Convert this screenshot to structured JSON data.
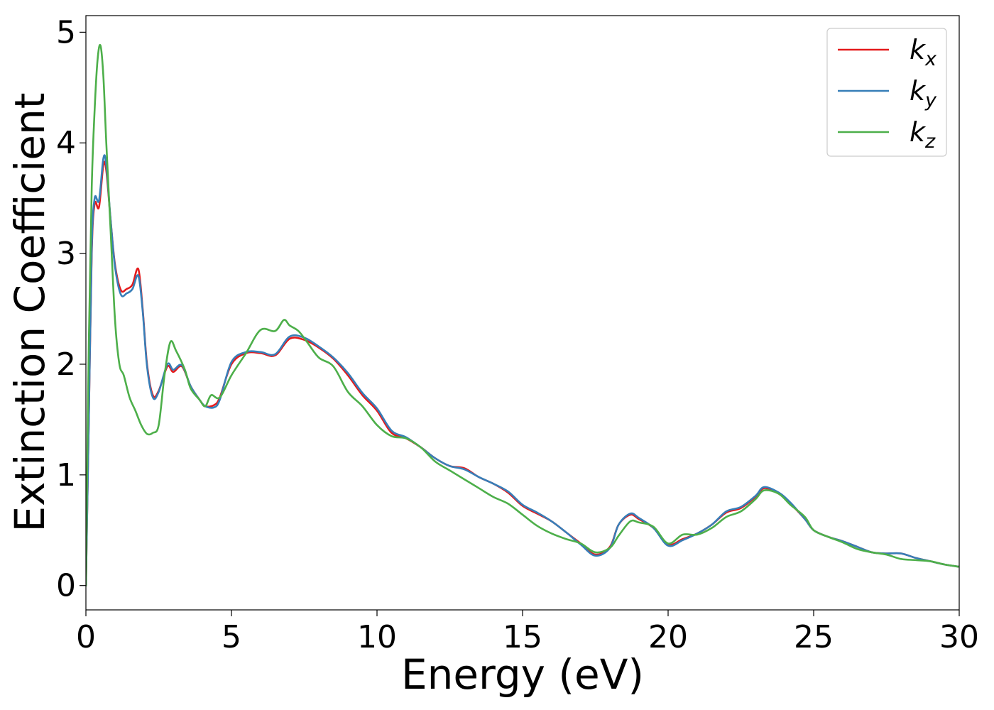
{
  "chart_data": {
    "type": "line",
    "xlabel": "Energy (eV)",
    "ylabel": "Extinction Coefficient",
    "xlim": [
      0,
      30
    ],
    "ylim": [
      -0.22,
      5.15
    ],
    "x_ticks": [
      0,
      5,
      10,
      15,
      20,
      25,
      30
    ],
    "y_ticks": [
      0,
      1,
      2,
      3,
      4,
      5
    ],
    "grid": false,
    "legend_position": "top-right",
    "series": [
      {
        "name": "k_x",
        "label_main": "k",
        "label_sub": "x",
        "color": "#e41a1c",
        "points": [
          [
            0,
            0
          ],
          [
            0.1,
            1.5
          ],
          [
            0.2,
            3.0
          ],
          [
            0.3,
            3.45
          ],
          [
            0.45,
            3.42
          ],
          [
            0.6,
            3.8
          ],
          [
            0.7,
            3.75
          ],
          [
            0.85,
            3.3
          ],
          [
            1.0,
            2.9
          ],
          [
            1.2,
            2.67
          ],
          [
            1.4,
            2.68
          ],
          [
            1.6,
            2.72
          ],
          [
            1.8,
            2.86
          ],
          [
            1.95,
            2.5
          ],
          [
            2.1,
            2.0
          ],
          [
            2.3,
            1.72
          ],
          [
            2.5,
            1.76
          ],
          [
            2.8,
            1.98
          ],
          [
            3.0,
            1.93
          ],
          [
            3.3,
            1.98
          ],
          [
            3.6,
            1.8
          ],
          [
            3.9,
            1.68
          ],
          [
            4.1,
            1.62
          ],
          [
            4.4,
            1.63
          ],
          [
            4.6,
            1.7
          ],
          [
            5.0,
            2.0
          ],
          [
            5.5,
            2.1
          ],
          [
            6.0,
            2.1
          ],
          [
            6.5,
            2.08
          ],
          [
            7.0,
            2.23
          ],
          [
            7.5,
            2.22
          ],
          [
            8.0,
            2.15
          ],
          [
            8.5,
            2.05
          ],
          [
            9.0,
            1.9
          ],
          [
            9.5,
            1.72
          ],
          [
            10.0,
            1.58
          ],
          [
            10.5,
            1.38
          ],
          [
            11.0,
            1.33
          ],
          [
            11.5,
            1.25
          ],
          [
            12.0,
            1.15
          ],
          [
            12.5,
            1.08
          ],
          [
            13.0,
            1.06
          ],
          [
            13.5,
            0.98
          ],
          [
            14.0,
            0.92
          ],
          [
            14.5,
            0.84
          ],
          [
            15.0,
            0.72
          ],
          [
            15.5,
            0.65
          ],
          [
            16.0,
            0.58
          ],
          [
            16.5,
            0.48
          ],
          [
            17.0,
            0.38
          ],
          [
            17.5,
            0.28
          ],
          [
            18.0,
            0.35
          ],
          [
            18.3,
            0.55
          ],
          [
            18.7,
            0.64
          ],
          [
            19.0,
            0.6
          ],
          [
            19.5,
            0.52
          ],
          [
            20.0,
            0.37
          ],
          [
            20.5,
            0.42
          ],
          [
            21.0,
            0.47
          ],
          [
            21.5,
            0.55
          ],
          [
            22.0,
            0.66
          ],
          [
            22.5,
            0.7
          ],
          [
            23.0,
            0.8
          ],
          [
            23.3,
            0.88
          ],
          [
            23.8,
            0.83
          ],
          [
            24.2,
            0.74
          ],
          [
            24.7,
            0.6
          ],
          [
            25.0,
            0.5
          ],
          [
            25.5,
            0.44
          ],
          [
            26.0,
            0.4
          ],
          [
            26.5,
            0.35
          ],
          [
            27.0,
            0.3
          ],
          [
            27.5,
            0.29
          ],
          [
            28.0,
            0.29
          ],
          [
            28.5,
            0.25
          ],
          [
            29.0,
            0.22
          ],
          [
            29.5,
            0.19
          ],
          [
            30.0,
            0.17
          ]
        ]
      },
      {
        "name": "k_y",
        "label_main": "k",
        "label_sub": "y",
        "color": "#377eb8",
        "points": [
          [
            0,
            0
          ],
          [
            0.1,
            1.5
          ],
          [
            0.2,
            3.05
          ],
          [
            0.3,
            3.5
          ],
          [
            0.45,
            3.48
          ],
          [
            0.6,
            3.86
          ],
          [
            0.7,
            3.8
          ],
          [
            0.85,
            3.3
          ],
          [
            1.0,
            2.88
          ],
          [
            1.2,
            2.63
          ],
          [
            1.4,
            2.64
          ],
          [
            1.6,
            2.68
          ],
          [
            1.8,
            2.8
          ],
          [
            1.95,
            2.48
          ],
          [
            2.1,
            1.98
          ],
          [
            2.3,
            1.7
          ],
          [
            2.5,
            1.75
          ],
          [
            2.8,
            2.0
          ],
          [
            3.0,
            1.95
          ],
          [
            3.3,
            1.99
          ],
          [
            3.6,
            1.8
          ],
          [
            3.9,
            1.68
          ],
          [
            4.1,
            1.62
          ],
          [
            4.4,
            1.61
          ],
          [
            4.6,
            1.68
          ],
          [
            5.0,
            2.02
          ],
          [
            5.5,
            2.11
          ],
          [
            6.0,
            2.11
          ],
          [
            6.5,
            2.09
          ],
          [
            7.0,
            2.25
          ],
          [
            7.5,
            2.24
          ],
          [
            8.0,
            2.16
          ],
          [
            8.5,
            2.06
          ],
          [
            9.0,
            1.92
          ],
          [
            9.5,
            1.74
          ],
          [
            10.0,
            1.6
          ],
          [
            10.5,
            1.4
          ],
          [
            11.0,
            1.34
          ],
          [
            11.5,
            1.25
          ],
          [
            12.0,
            1.15
          ],
          [
            12.5,
            1.08
          ],
          [
            13.0,
            1.05
          ],
          [
            13.5,
            0.98
          ],
          [
            14.0,
            0.92
          ],
          [
            14.5,
            0.85
          ],
          [
            15.0,
            0.73
          ],
          [
            15.5,
            0.66
          ],
          [
            16.0,
            0.58
          ],
          [
            16.5,
            0.48
          ],
          [
            17.0,
            0.37
          ],
          [
            17.5,
            0.27
          ],
          [
            18.0,
            0.34
          ],
          [
            18.3,
            0.55
          ],
          [
            18.7,
            0.65
          ],
          [
            19.0,
            0.61
          ],
          [
            19.5,
            0.52
          ],
          [
            20.0,
            0.36
          ],
          [
            20.5,
            0.41
          ],
          [
            21.0,
            0.47
          ],
          [
            21.5,
            0.55
          ],
          [
            22.0,
            0.67
          ],
          [
            22.5,
            0.71
          ],
          [
            23.0,
            0.81
          ],
          [
            23.3,
            0.89
          ],
          [
            23.8,
            0.84
          ],
          [
            24.2,
            0.75
          ],
          [
            24.7,
            0.6
          ],
          [
            25.0,
            0.5
          ],
          [
            25.5,
            0.44
          ],
          [
            26.0,
            0.4
          ],
          [
            26.5,
            0.35
          ],
          [
            27.0,
            0.3
          ],
          [
            27.5,
            0.29
          ],
          [
            28.0,
            0.29
          ],
          [
            28.5,
            0.25
          ],
          [
            29.0,
            0.22
          ],
          [
            29.5,
            0.19
          ],
          [
            30.0,
            0.17
          ]
        ]
      },
      {
        "name": "k_z",
        "label_main": "k",
        "label_sub": "z",
        "color": "#4daf4a",
        "points": [
          [
            0,
            0
          ],
          [
            0.1,
            2.2
          ],
          [
            0.2,
            3.6
          ],
          [
            0.3,
            4.3
          ],
          [
            0.4,
            4.75
          ],
          [
            0.5,
            4.88
          ],
          [
            0.6,
            4.6
          ],
          [
            0.7,
            4.0
          ],
          [
            0.85,
            3.2
          ],
          [
            1.0,
            2.4
          ],
          [
            1.15,
            2.0
          ],
          [
            1.3,
            1.9
          ],
          [
            1.5,
            1.7
          ],
          [
            1.7,
            1.58
          ],
          [
            1.9,
            1.45
          ],
          [
            2.1,
            1.37
          ],
          [
            2.3,
            1.38
          ],
          [
            2.5,
            1.45
          ],
          [
            2.7,
            1.9
          ],
          [
            2.9,
            2.2
          ],
          [
            3.1,
            2.12
          ],
          [
            3.4,
            1.95
          ],
          [
            3.6,
            1.78
          ],
          [
            3.9,
            1.68
          ],
          [
            4.1,
            1.62
          ],
          [
            4.3,
            1.72
          ],
          [
            4.6,
            1.7
          ],
          [
            5.0,
            1.9
          ],
          [
            5.5,
            2.1
          ],
          [
            6.0,
            2.31
          ],
          [
            6.5,
            2.3
          ],
          [
            6.8,
            2.4
          ],
          [
            7.0,
            2.35
          ],
          [
            7.3,
            2.3
          ],
          [
            7.6,
            2.2
          ],
          [
            8.0,
            2.06
          ],
          [
            8.5,
            1.98
          ],
          [
            9.0,
            1.75
          ],
          [
            9.5,
            1.62
          ],
          [
            10.0,
            1.45
          ],
          [
            10.5,
            1.35
          ],
          [
            11.0,
            1.33
          ],
          [
            11.5,
            1.25
          ],
          [
            12.0,
            1.12
          ],
          [
            12.5,
            1.04
          ],
          [
            13.0,
            0.96
          ],
          [
            13.5,
            0.88
          ],
          [
            14.0,
            0.8
          ],
          [
            14.5,
            0.74
          ],
          [
            15.0,
            0.64
          ],
          [
            15.5,
            0.54
          ],
          [
            16.0,
            0.47
          ],
          [
            16.5,
            0.42
          ],
          [
            17.0,
            0.38
          ],
          [
            17.5,
            0.3
          ],
          [
            18.0,
            0.34
          ],
          [
            18.3,
            0.45
          ],
          [
            18.7,
            0.58
          ],
          [
            19.0,
            0.57
          ],
          [
            19.5,
            0.53
          ],
          [
            20.0,
            0.38
          ],
          [
            20.5,
            0.46
          ],
          [
            21.0,
            0.46
          ],
          [
            21.5,
            0.52
          ],
          [
            22.0,
            0.62
          ],
          [
            22.5,
            0.67
          ],
          [
            23.0,
            0.78
          ],
          [
            23.3,
            0.86
          ],
          [
            23.8,
            0.83
          ],
          [
            24.2,
            0.73
          ],
          [
            24.7,
            0.62
          ],
          [
            25.0,
            0.5
          ],
          [
            25.5,
            0.44
          ],
          [
            26.0,
            0.39
          ],
          [
            26.5,
            0.33
          ],
          [
            27.0,
            0.3
          ],
          [
            27.5,
            0.28
          ],
          [
            28.0,
            0.24
          ],
          [
            28.5,
            0.23
          ],
          [
            29.0,
            0.22
          ],
          [
            29.5,
            0.19
          ],
          [
            30.0,
            0.17
          ]
        ]
      }
    ]
  }
}
